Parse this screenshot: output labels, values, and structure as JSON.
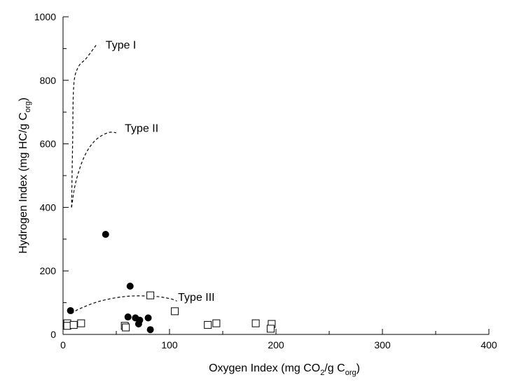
{
  "chart_data": {
    "type": "scatter",
    "xlabel": "Oxygen Index (mg CO",
    "xlabel_sub1": "2",
    "xlabel_mid": "/g C",
    "xlabel_sub2": "org",
    "xlabel_end": ")",
    "ylabel": "Hydrogen Index (mg HC/g C",
    "ylabel_sub": "org",
    "ylabel_end": ")",
    "xlim": [
      0,
      400
    ],
    "ylim": [
      0,
      1000
    ],
    "x_ticks": [
      "0",
      "100",
      "200",
      "300",
      "400"
    ],
    "y_ticks": [
      "0",
      "200",
      "400",
      "600",
      "800",
      "1000"
    ],
    "grid": false,
    "series": [
      {
        "marker": "filled-circle",
        "points": [
          {
            "x": 40,
            "y": 315
          },
          {
            "x": 7,
            "y": 75
          },
          {
            "x": 63,
            "y": 152
          },
          {
            "x": 61,
            "y": 55
          },
          {
            "x": 68,
            "y": 52
          },
          {
            "x": 72,
            "y": 45
          },
          {
            "x": 71,
            "y": 33
          },
          {
            "x": 80,
            "y": 52
          },
          {
            "x": 82,
            "y": 15
          }
        ]
      },
      {
        "marker": "open-square",
        "points": [
          {
            "x": 4,
            "y": 35
          },
          {
            "x": 4,
            "y": 27
          },
          {
            "x": 10,
            "y": 30
          },
          {
            "x": 17,
            "y": 35
          },
          {
            "x": 58,
            "y": 27
          },
          {
            "x": 59,
            "y": 22
          },
          {
            "x": 82,
            "y": 123
          },
          {
            "x": 105,
            "y": 73
          },
          {
            "x": 136,
            "y": 30
          },
          {
            "x": 144,
            "y": 35
          },
          {
            "x": 181,
            "y": 35
          },
          {
            "x": 196,
            "y": 33
          },
          {
            "x": 195,
            "y": 18
          }
        ]
      }
    ],
    "curves": [
      {
        "label": "Type I",
        "points": [
          [
            8,
            400
          ],
          [
            9,
            600
          ],
          [
            10,
            780
          ],
          [
            14,
            840
          ],
          [
            22,
            870
          ],
          [
            32,
            915
          ]
        ]
      },
      {
        "label": "Type II",
        "points": [
          [
            8,
            400
          ],
          [
            12,
            480
          ],
          [
            20,
            560
          ],
          [
            30,
            610
          ],
          [
            42,
            635
          ],
          [
            50,
            635
          ]
        ]
      },
      {
        "label": "Type III",
        "points": [
          [
            8,
            65
          ],
          [
            15,
            80
          ],
          [
            35,
            105
          ],
          [
            60,
            120
          ],
          [
            85,
            120
          ],
          [
            100,
            113
          ],
          [
            107,
            105
          ]
        ]
      }
    ],
    "annotations": [
      {
        "text": "Type I",
        "x": 40,
        "y": 900
      },
      {
        "text": "Type II",
        "x": 58,
        "y": 638
      },
      {
        "text": "Type III",
        "x": 108,
        "y": 106
      }
    ]
  }
}
